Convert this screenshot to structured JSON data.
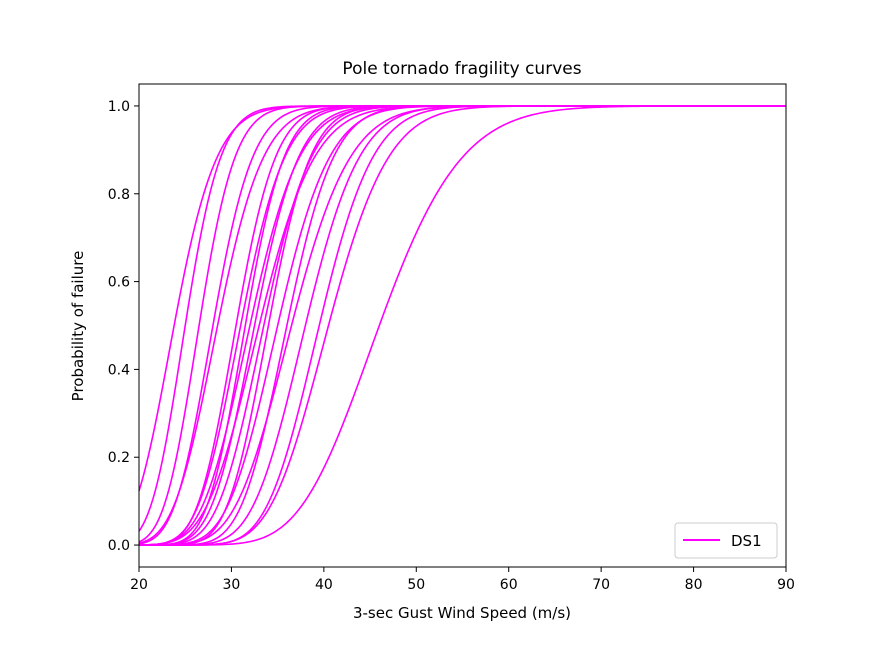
{
  "chart_data": {
    "type": "line",
    "title": "Pole tornado fragility curves",
    "xlabel": "3-sec Gust Wind Speed (m/s)",
    "ylabel": "Probability of failure",
    "xlim": [
      20,
      90
    ],
    "ylim": [
      -0.05,
      1.05
    ],
    "xticks": [
      20,
      30,
      40,
      50,
      60,
      70,
      80,
      90
    ],
    "yticks": [
      0.0,
      0.2,
      0.4,
      0.6,
      0.8,
      1.0
    ],
    "grid": false,
    "legend": {
      "position": "lower-right",
      "entries": [
        {
          "label": "DS1",
          "color": "#ff00ff"
        }
      ]
    },
    "curve_model": "lognormal CDF (median, beta)",
    "series_color": "#ff00ff",
    "series": [
      {
        "median": 23.8,
        "beta": 0.15
      },
      {
        "median": 25.0,
        "beta": 0.12
      },
      {
        "median": 26.5,
        "beta": 0.115
      },
      {
        "median": 28.0,
        "beta": 0.12
      },
      {
        "median": 28.5,
        "beta": 0.135
      },
      {
        "median": 30.5,
        "beta": 0.11
      },
      {
        "median": 31.0,
        "beta": 0.12
      },
      {
        "median": 31.5,
        "beta": 0.105
      },
      {
        "median": 32.0,
        "beta": 0.13
      },
      {
        "median": 32.5,
        "beta": 0.115
      },
      {
        "median": 33.0,
        "beta": 0.14
      },
      {
        "median": 33.5,
        "beta": 0.12
      },
      {
        "median": 34.0,
        "beta": 0.105
      },
      {
        "median": 35.0,
        "beta": 0.125
      },
      {
        "median": 36.0,
        "beta": 0.11
      },
      {
        "median": 36.5,
        "beta": 0.135
      },
      {
        "median": 38.0,
        "beta": 0.12
      },
      {
        "median": 39.5,
        "beta": 0.115
      },
      {
        "median": 40.5,
        "beta": 0.125
      },
      {
        "median": 46.0,
        "beta": 0.15
      }
    ]
  }
}
